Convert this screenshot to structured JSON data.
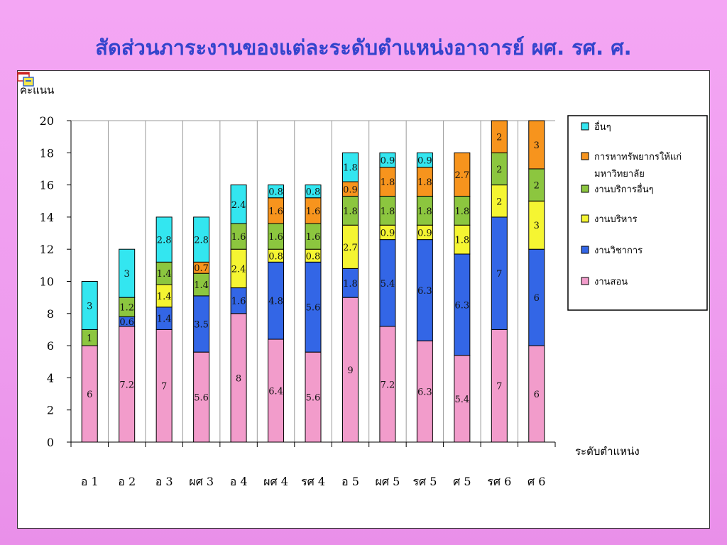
{
  "slide": {
    "title": "สัดส่วนภาระงานของแต่ละระดับตำแหน่งอาจารย์ ผศ. รศ. ศ."
  },
  "chart_data": {
    "type": "bar",
    "stacked": true,
    "ylabel": "คะแนน",
    "xlabel": "ระดับตำแหน่ง",
    "ylim": [
      0,
      20
    ],
    "yticks": [
      0,
      2,
      4,
      6,
      8,
      10,
      12,
      14,
      16,
      18,
      20
    ],
    "grid": true,
    "legend_position": "right",
    "categories": [
      "อ 1",
      "อ 2",
      "อ 3",
      "ผศ 3",
      "อ 4",
      "ผศ 4",
      "รศ 4",
      "อ 5",
      "ผศ 5",
      "รศ 5",
      "ศ 5",
      "รศ 6",
      "ศ 6"
    ],
    "series": [
      {
        "name": "งานสอน",
        "color": "#f29ccb",
        "values": [
          6,
          7.2,
          7,
          5.6,
          8,
          6.4,
          5.6,
          9,
          7.2,
          6.3,
          5.4,
          7,
          6
        ]
      },
      {
        "name": "งานวิชาการ",
        "color": "#3366e6",
        "values": [
          0,
          0.6,
          1.4,
          3.5,
          1.6,
          4.8,
          5.6,
          1.8,
          5.4,
          6.3,
          6.3,
          7,
          6
        ]
      },
      {
        "name": "งานบริหาร",
        "color": "#f5f532",
        "values": [
          0,
          0,
          1.4,
          0,
          2.4,
          0.8,
          0.8,
          2.7,
          0.9,
          0.9,
          1.8,
          2,
          3
        ]
      },
      {
        "name": "งานบริการอื่นๆ",
        "color": "#8cc63f",
        "values": [
          1,
          1.2,
          1.4,
          1.4,
          1.6,
          1.6,
          1.6,
          1.8,
          1.8,
          1.8,
          1.8,
          2,
          2
        ]
      },
      {
        "name": "การหาทรัพยากรให้แก่มหาวิทยาลัย",
        "color": "#f7941d",
        "values": [
          0,
          0,
          0,
          0.7,
          0,
          1.6,
          1.6,
          0.9,
          1.8,
          1.8,
          2.7,
          2,
          3
        ]
      },
      {
        "name": "อื่นๆ",
        "color": "#33e6f0",
        "values": [
          3,
          3,
          2.8,
          2.8,
          2.4,
          0.8,
          0.8,
          1.8,
          0.9,
          0.9,
          0,
          0,
          0
        ]
      }
    ]
  }
}
